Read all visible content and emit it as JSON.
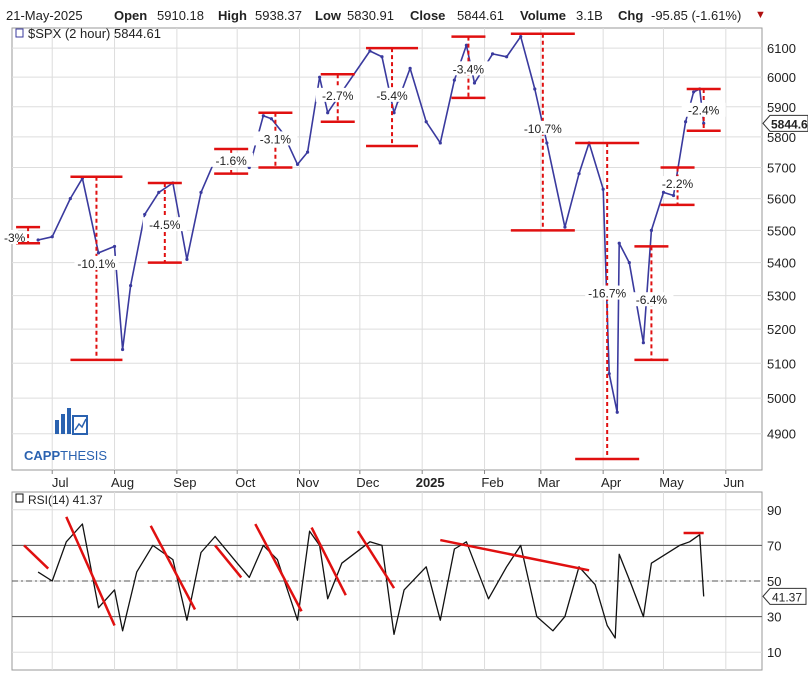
{
  "header": {
    "date": "21-May-2025",
    "open_label": "Open",
    "open": "5910.18",
    "high_label": "High",
    "high": "5938.37",
    "low_label": "Low",
    "low": "5830.91",
    "close_label": "Close",
    "close": "5844.61",
    "volume_label": "Volume",
    "volume": "3.1B",
    "chg_label": "Chg",
    "chg": "-95.85 (-1.61%)",
    "chg_arrow": "▼"
  },
  "colors": {
    "price": "#3a3a9e",
    "annotation": "#e01010",
    "rsi": "#111111",
    "grid": "#dddddd",
    "brand": "#2a62b0"
  },
  "logo": {
    "text_bold": "CAPP",
    "text_light": "THESIS",
    "icon": "bar-chart-logo-icon"
  },
  "chart_data": [
    {
      "type": "line",
      "title": "$SPX (2 hour) 5844.61",
      "last_value": "5844.61",
      "ylim": [
        4800,
        6170
      ],
      "yscale": "log",
      "yticks": [
        4900,
        5000,
        5100,
        5200,
        5300,
        5400,
        5500,
        5600,
        5700,
        5800,
        5900,
        6000,
        6100
      ],
      "xticks": [
        "Jul",
        "Aug",
        "Sep",
        "Oct",
        "Nov",
        "Dec",
        "2025",
        "Feb",
        "Mar",
        "Apr",
        "May",
        "Jun"
      ],
      "xtick_dates": [
        "2024-07-01",
        "2024-08-01",
        "2024-09-01",
        "2024-10-01",
        "2024-11-01",
        "2024-12-01",
        "2025-01-01",
        "2025-02-01",
        "2025-03-01",
        "2025-04-01",
        "2025-05-01",
        "2025-06-01"
      ],
      "x": [
        "2024-06-24",
        "2024-07-01",
        "2024-07-10",
        "2024-07-16",
        "2024-07-24",
        "2024-08-01",
        "2024-08-05",
        "2024-08-09",
        "2024-08-16",
        "2024-08-23",
        "2024-08-30",
        "2024-09-06",
        "2024-09-13",
        "2024-09-19",
        "2024-09-30",
        "2024-10-07",
        "2024-10-14",
        "2024-10-18",
        "2024-10-24",
        "2024-10-31",
        "2024-11-05",
        "2024-11-11",
        "2024-11-15",
        "2024-11-22",
        "2024-12-06",
        "2024-12-12",
        "2024-12-18",
        "2024-12-20",
        "2024-12-26",
        "2025-01-03",
        "2025-01-10",
        "2025-01-17",
        "2025-01-23",
        "2025-01-27",
        "2025-02-05",
        "2025-02-12",
        "2025-02-19",
        "2025-02-26",
        "2025-03-04",
        "2025-03-13",
        "2025-03-20",
        "2025-03-25",
        "2025-04-01",
        "2025-04-04",
        "2025-04-08",
        "2025-04-09",
        "2025-04-14",
        "2025-04-21",
        "2025-04-25",
        "2025-05-01",
        "2025-05-06",
        "2025-05-12",
        "2025-05-16",
        "2025-05-19",
        "2025-05-21"
      ],
      "values": [
        5470,
        5480,
        5600,
        5665,
        5430,
        5450,
        5140,
        5330,
        5550,
        5620,
        5650,
        5410,
        5620,
        5710,
        5740,
        5700,
        5870,
        5860,
        5810,
        5710,
        5750,
        6000,
        5880,
        5950,
        6090,
        6070,
        5880,
        5920,
        6030,
        5850,
        5780,
        5990,
        6110,
        5980,
        6080,
        6070,
        6140,
        5960,
        5780,
        5510,
        5680,
        5780,
        5630,
        5070,
        4960,
        5460,
        5400,
        5160,
        5500,
        5620,
        5610,
        5850,
        5950,
        5960,
        5844.61
      ],
      "annotations": [
        {
          "label": "-3%",
          "high": 5510,
          "low": 5460,
          "label_y": 5470
        },
        {
          "label": "-10.1%",
          "high": 5670,
          "low": 5110,
          "label_y": 5390
        },
        {
          "label": "-4.5%",
          "high": 5650,
          "low": 5400,
          "label_y": 5510
        },
        {
          "label": "-1.6%",
          "high": 5760,
          "low": 5680,
          "label_y": 5715
        },
        {
          "label": "-3.1%",
          "high": 5880,
          "low": 5700,
          "label_y": 5785
        },
        {
          "label": "-2.7%",
          "high": 6010,
          "low": 5850,
          "label_y": 5930
        },
        {
          "label": "-5.4%",
          "high": 6100,
          "low": 5770,
          "label_y": 5930
        },
        {
          "label": "-3.4%",
          "high": 6140,
          "low": 5930,
          "label_y": 6020
        },
        {
          "label": "-10.7%",
          "high": 6150,
          "low": 5500,
          "label_y": 5820
        },
        {
          "label": "-16.7%",
          "high": 5780,
          "low": 4830,
          "label_y": 5300
        },
        {
          "label": "-6.4%",
          "high": 5450,
          "low": 5110,
          "label_y": 5280
        },
        {
          "label": "-2.2%",
          "high": 5700,
          "low": 5580,
          "label_y": 5640
        },
        {
          "label": "-2.4%",
          "high": 5960,
          "low": 5820,
          "label_y": 5880
        }
      ]
    },
    {
      "type": "line",
      "title": "RSI(14) 41.37",
      "last_value": "41.37",
      "ylim": [
        0,
        100
      ],
      "yticks": [
        10,
        30,
        50,
        70,
        90
      ],
      "reference_lines": [
        30,
        50,
        70
      ],
      "x": [
        "2024-06-24",
        "2024-07-01",
        "2024-07-08",
        "2024-07-16",
        "2024-07-24",
        "2024-08-01",
        "2024-08-05",
        "2024-08-12",
        "2024-08-20",
        "2024-08-30",
        "2024-09-06",
        "2024-09-13",
        "2024-09-20",
        "2024-10-01",
        "2024-10-07",
        "2024-10-14",
        "2024-10-21",
        "2024-10-31",
        "2024-11-06",
        "2024-11-11",
        "2024-11-15",
        "2024-11-22",
        "2024-12-06",
        "2024-12-12",
        "2024-12-18",
        "2024-12-23",
        "2025-01-03",
        "2025-01-10",
        "2025-01-17",
        "2025-01-23",
        "2025-02-03",
        "2025-02-12",
        "2025-02-19",
        "2025-02-27",
        "2025-03-07",
        "2025-03-13",
        "2025-03-20",
        "2025-03-28",
        "2025-04-03",
        "2025-04-07",
        "2025-04-09",
        "2025-04-15",
        "2025-04-21",
        "2025-04-25",
        "2025-05-02",
        "2025-05-09",
        "2025-05-14",
        "2025-05-19",
        "2025-05-21"
      ],
      "values": [
        55,
        50,
        72,
        82,
        35,
        45,
        22,
        55,
        70,
        62,
        28,
        66,
        75,
        60,
        52,
        70,
        62,
        28,
        78,
        70,
        40,
        60,
        72,
        70,
        20,
        45,
        58,
        28,
        68,
        72,
        40,
        58,
        70,
        30,
        22,
        30,
        58,
        48,
        25,
        18,
        65,
        48,
        30,
        60,
        65,
        70,
        72,
        76,
        41.37
      ],
      "trendlines": [
        {
          "x": [
            "2024-06-17",
            "2024-06-29"
          ],
          "y": [
            70,
            57
          ]
        },
        {
          "x": [
            "2024-07-08",
            "2024-08-01"
          ],
          "y": [
            86,
            25
          ]
        },
        {
          "x": [
            "2024-08-19",
            "2024-09-10"
          ],
          "y": [
            81,
            34
          ]
        },
        {
          "x": [
            "2024-09-20",
            "2024-10-03"
          ],
          "y": [
            70,
            52
          ]
        },
        {
          "x": [
            "2024-10-10",
            "2024-11-02"
          ],
          "y": [
            82,
            33
          ]
        },
        {
          "x": [
            "2024-11-07",
            "2024-11-24"
          ],
          "y": [
            80,
            42
          ]
        },
        {
          "x": [
            "2024-11-30",
            "2024-12-18"
          ],
          "y": [
            78,
            46
          ]
        },
        {
          "x": [
            "2025-01-10",
            "2025-03-25"
          ],
          "y": [
            73,
            56
          ]
        },
        {
          "x": [
            "2025-05-11",
            "2025-05-21"
          ],
          "y": [
            77,
            77
          ]
        }
      ]
    }
  ]
}
